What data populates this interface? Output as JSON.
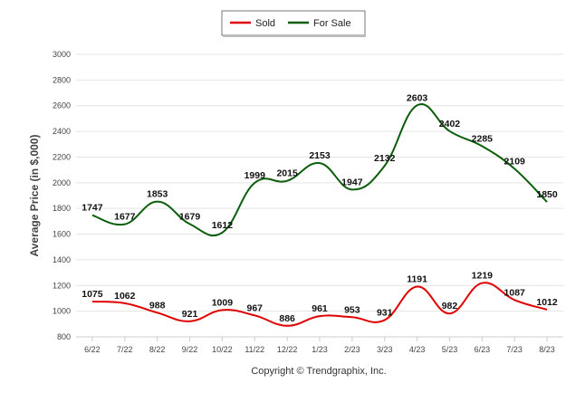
{
  "chart_data": {
    "type": "line",
    "ylabel": "Average Price (in $,000)",
    "categories": [
      "6/22",
      "7/22",
      "8/22",
      "9/22",
      "10/22",
      "11/22",
      "12/22",
      "1/23",
      "2/23",
      "3/23",
      "4/23",
      "5/23",
      "6/23",
      "7/23",
      "8/23"
    ],
    "ylim": [
      800,
      3000
    ],
    "yticks": [
      800,
      1000,
      1200,
      1400,
      1600,
      1800,
      2000,
      2200,
      2400,
      2600,
      2800,
      3000
    ],
    "grid": true,
    "legend_position": "top-center",
    "series": [
      {
        "name": "Sold",
        "color": "#e00000",
        "values": [
          1075,
          1062,
          988,
          921,
          1009,
          967,
          886,
          961,
          953,
          931,
          1191,
          982,
          1219,
          1087,
          1012
        ]
      },
      {
        "name": "For Sale",
        "color": "#0b5e0b",
        "values": [
          1747,
          1677,
          1853,
          1679,
          1612,
          1999,
          2015,
          2153,
          1947,
          2132,
          2603,
          2402,
          2285,
          2109,
          1850
        ]
      }
    ],
    "credit": "Copyright © Trendgraphix, Inc."
  }
}
